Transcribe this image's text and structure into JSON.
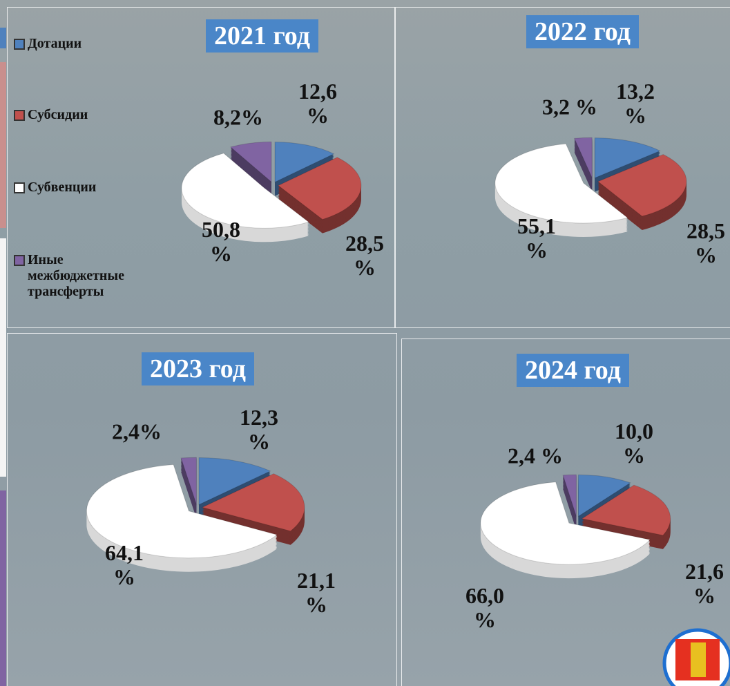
{
  "chart_data": [
    {
      "type": "pie",
      "title": "2021 год",
      "categories": [
        "Дотации",
        "Субсидии",
        "Субвенции",
        "Иные межбюджетные трансферты"
      ],
      "colors": [
        "#4f81bd",
        "#c0504d",
        "#ffffff",
        "#8064a2"
      ],
      "values": [
        12.6,
        28.5,
        50.8,
        8.2
      ],
      "value_labels": [
        "12,6 %",
        "28,5 %",
        "50,8 %",
        "8,2%"
      ]
    },
    {
      "type": "pie",
      "title": "2022 год",
      "values": [
        13.2,
        28.5,
        55.1,
        3.2
      ],
      "value_labels": [
        "13,2 %",
        "28,5 %",
        "55,1 %",
        "3,2 %"
      ]
    },
    {
      "type": "pie",
      "title": "2023 год",
      "values": [
        12.3,
        21.1,
        64.1,
        2.4
      ],
      "value_labels": [
        "12,3 %",
        "21,1 %",
        "64,1 %",
        "2,4%"
      ]
    },
    {
      "type": "pie",
      "title": "2024 год",
      "values": [
        10.0,
        21.6,
        66.0,
        2.4
      ],
      "value_labels": [
        "10,0 %",
        "21,6 %",
        "66,0 %",
        "2,4 %"
      ]
    }
  ]
}
